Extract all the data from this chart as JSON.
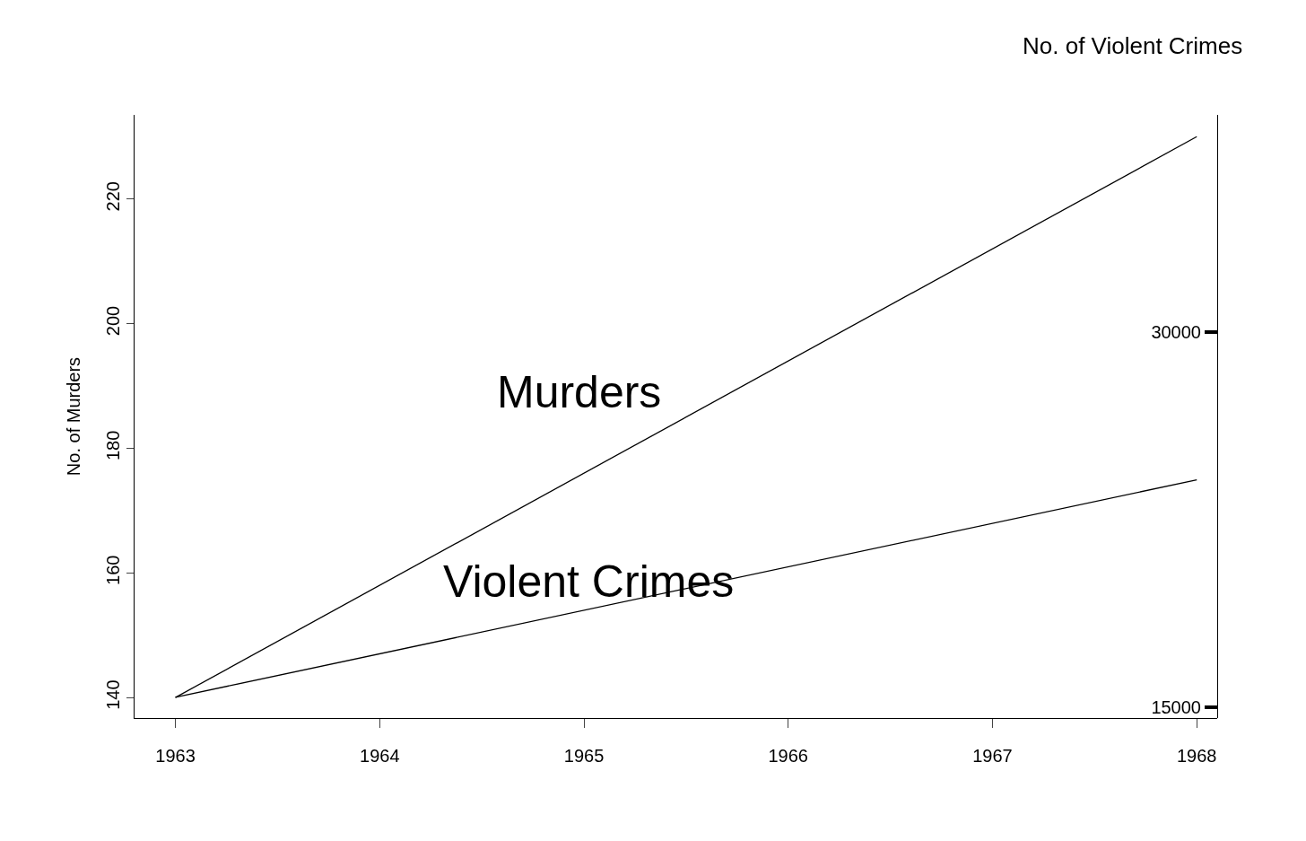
{
  "chart_data": {
    "type": "line",
    "ylabel": "No. of Murders",
    "y2label": "No. of Violent Crimes",
    "x": [
      1963,
      1968
    ],
    "series": [
      {
        "name": "Murders",
        "color": "#000000",
        "values": [
          140,
          230
        ]
      },
      {
        "name": "Violent Crimes",
        "color": "#000000",
        "values": [
          15400,
          24100
        ],
        "axis": "y2"
      }
    ],
    "xlim": [
      1962.8,
      1968.1
    ],
    "xticks": [
      1963,
      1964,
      1965,
      1966,
      1967,
      1968
    ],
    "ylim": [
      136.7,
      233.5
    ],
    "yticks": [
      140,
      160,
      180,
      200,
      220
    ],
    "y2lim": [
      14570,
      38700
    ],
    "y2ticks": [
      15000,
      30000
    ],
    "grid": false,
    "legend": false,
    "marker": "none",
    "line_style": "solid"
  }
}
